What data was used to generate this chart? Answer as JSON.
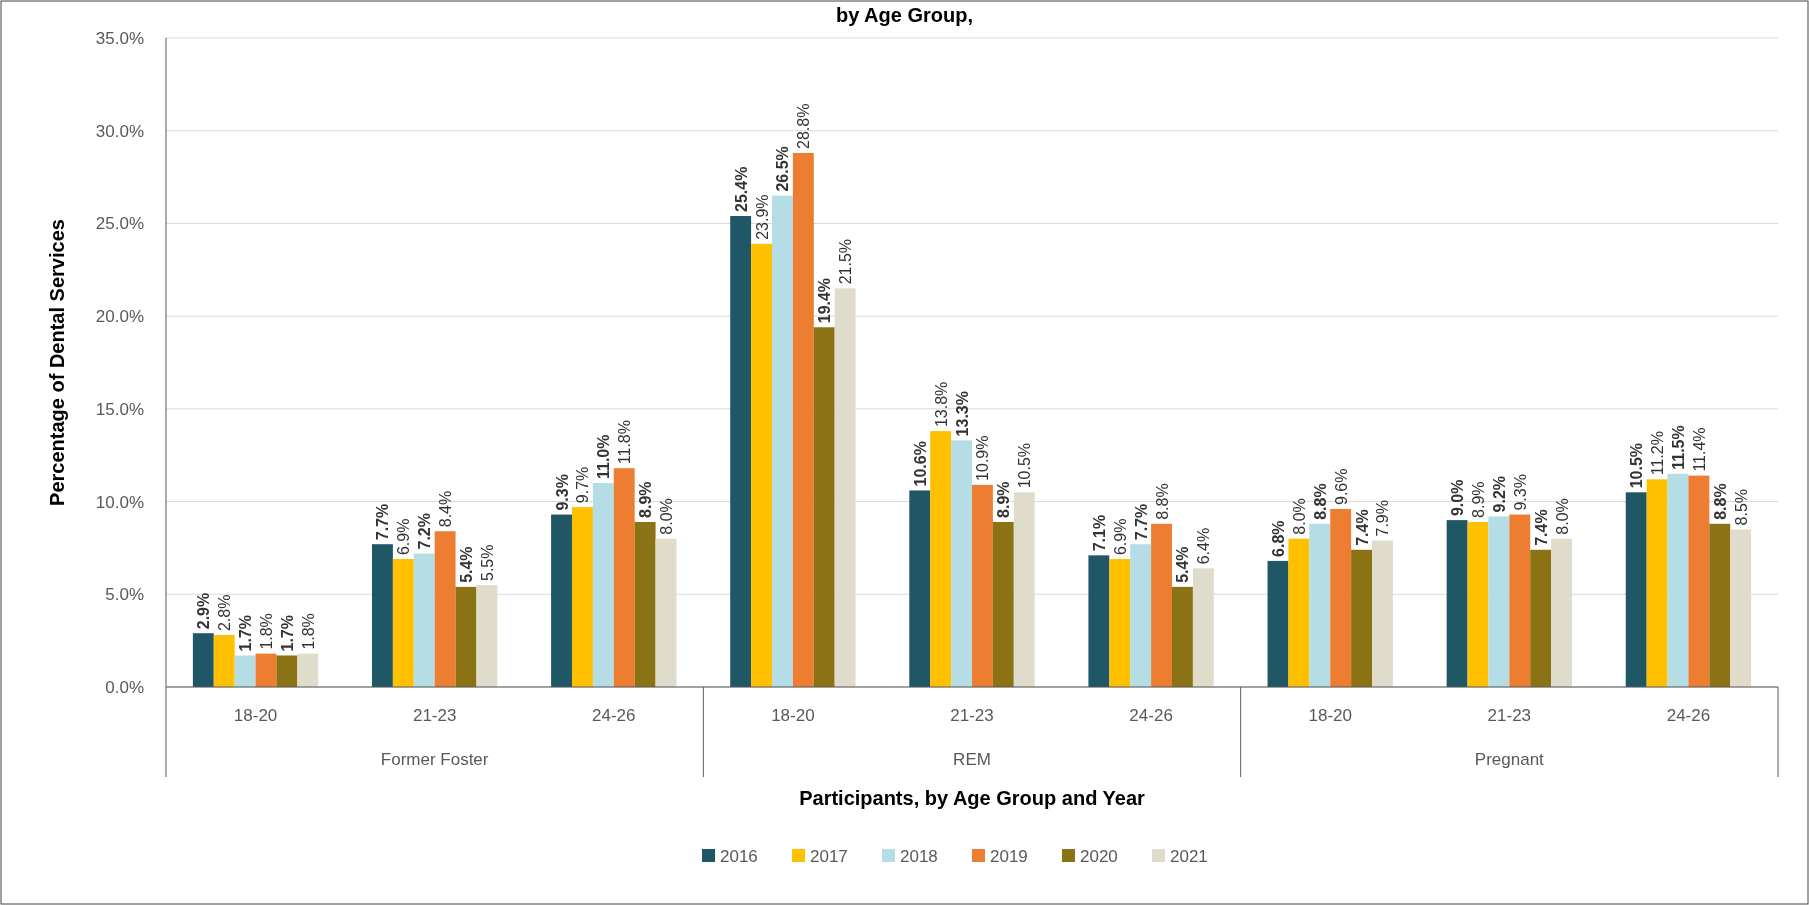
{
  "chart_data": {
    "type": "bar",
    "title": "by Age Group,",
    "xlabel": "Participants, by Age Group and Year",
    "ylabel": "Percentage of Dental Services",
    "categories": [
      "18-20",
      "21-23",
      "24-26",
      "18-20",
      "21-23",
      "24-26",
      "18-20",
      "21-23",
      "24-26"
    ],
    "annotations": [
      "Former Foster",
      "REM",
      "Pregnant"
    ],
    "series": [
      {
        "name": "2016",
        "color": "#1f5767",
        "values": [
          2.9,
          7.7,
          9.3,
          25.4,
          10.6,
          7.1,
          6.8,
          9.0,
          10.5
        ],
        "value_labels": [
          "2.9%",
          "7.7%",
          "9.3%",
          "25.4%",
          "10.6%",
          "7.1%",
          "6.8%",
          "9.0%",
          "10.5%"
        ]
      },
      {
        "name": "2017",
        "color": "#ffc000",
        "values": [
          2.8,
          6.9,
          9.7,
          23.9,
          13.8,
          6.9,
          8.0,
          8.9,
          11.2
        ],
        "value_labels": [
          "2.8%",
          "6.9%",
          "9.7%",
          "23.9%",
          "13.8%",
          "6.9%",
          "8.0%",
          "8.9%",
          "11.2%"
        ]
      },
      {
        "name": "2018",
        "color": "#b4dde6",
        "values": [
          1.7,
          7.2,
          11.0,
          26.5,
          13.3,
          7.7,
          8.8,
          9.2,
          11.5
        ],
        "value_labels": [
          "1.7%",
          "7.2%",
          "11.0%",
          "26.5%",
          "13.3%",
          "7.7%",
          "8.8%",
          "9.2%",
          "11.5%"
        ]
      },
      {
        "name": "2019",
        "color": "#ed7d31",
        "values": [
          1.8,
          8.4,
          11.8,
          28.8,
          10.9,
          8.8,
          9.6,
          9.3,
          11.4
        ],
        "value_labels": [
          "1.8%",
          "8.4%",
          "11.8%",
          "28.8%",
          "10.9%",
          "8.8%",
          "9.6%",
          "9.3%",
          "11.4%"
        ]
      },
      {
        "name": "2020",
        "color": "#8b7214",
        "values": [
          1.7,
          5.4,
          8.9,
          19.4,
          8.9,
          5.4,
          7.4,
          7.4,
          8.8
        ],
        "value_labels": [
          "1.7%",
          "5.4%",
          "8.9%",
          "19.4%",
          "8.9%",
          "5.4%",
          "7.4%",
          "7.4%",
          "8.8%"
        ]
      },
      {
        "name": "2021",
        "color": "#e0dccb",
        "values": [
          1.8,
          5.5,
          8.0,
          21.5,
          10.5,
          6.4,
          7.9,
          8.0,
          8.5
        ],
        "value_labels": [
          "1.8%",
          "5.5%",
          "8.0%",
          "21.5%",
          "10.5%",
          "6.4%",
          "7.9%",
          "8.0%",
          "8.5%"
        ]
      }
    ],
    "ylim": [
      0,
      35
    ],
    "yticks": [
      {
        "value": 0,
        "label": "0.0%"
      },
      {
        "value": 5,
        "label": "5.0%"
      },
      {
        "value": 10,
        "label": "10.0%"
      },
      {
        "value": 15,
        "label": "15.0%"
      },
      {
        "value": 20,
        "label": "20.0%"
      },
      {
        "value": 25,
        "label": "25.0%"
      },
      {
        "value": 30,
        "label": "30.0%"
      },
      {
        "value": 35,
        "label": "35.0%"
      }
    ],
    "grid": "y",
    "legend": "bottom"
  }
}
